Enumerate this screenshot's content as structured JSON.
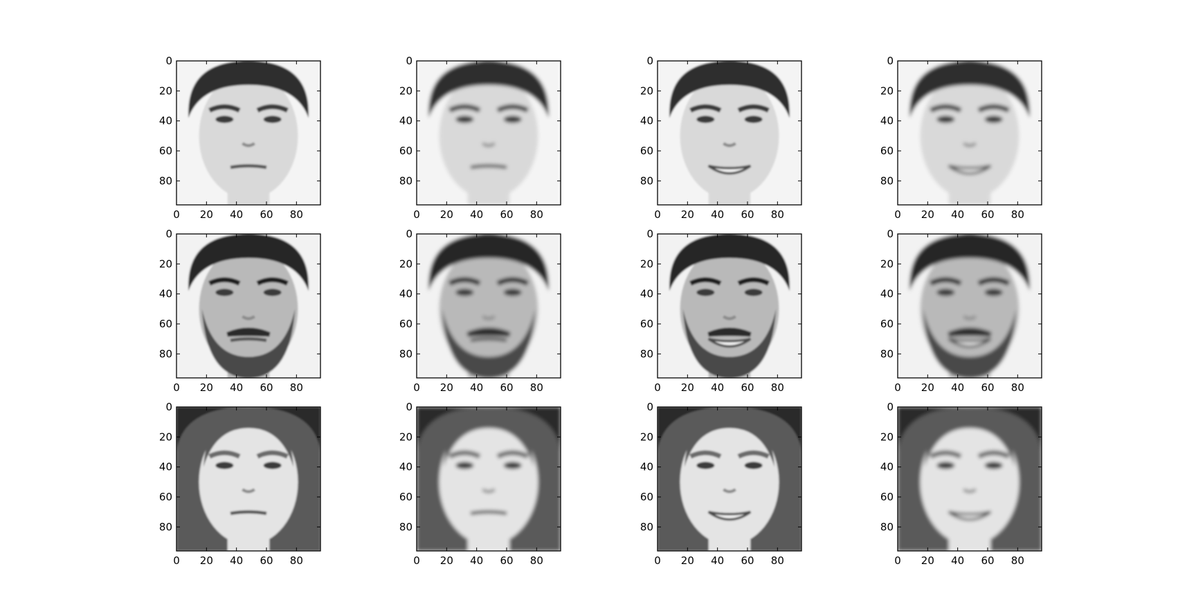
{
  "figure": {
    "rows": 3,
    "cols": 4,
    "axis_limits": {
      "x": [
        0,
        96
      ],
      "y": [
        0,
        96
      ]
    },
    "tick_values": [
      0,
      20,
      40,
      60,
      80
    ],
    "tick_labels": [
      "0",
      "20",
      "40",
      "60",
      "80"
    ],
    "colormap": "gray",
    "panels": [
      {
        "row": 0,
        "col": 0,
        "subject": "young-man-short-hair",
        "expression": "neutral",
        "version": "original"
      },
      {
        "row": 0,
        "col": 1,
        "subject": "young-man-short-hair",
        "expression": "neutral",
        "version": "reconstruction"
      },
      {
        "row": 0,
        "col": 2,
        "subject": "young-man-short-hair",
        "expression": "smiling",
        "version": "original"
      },
      {
        "row": 0,
        "col": 3,
        "subject": "young-man-short-hair",
        "expression": "smiling",
        "version": "reconstruction"
      },
      {
        "row": 1,
        "col": 0,
        "subject": "bearded-man",
        "expression": "neutral",
        "version": "original"
      },
      {
        "row": 1,
        "col": 1,
        "subject": "bearded-man",
        "expression": "neutral",
        "version": "reconstruction"
      },
      {
        "row": 1,
        "col": 2,
        "subject": "bearded-man",
        "expression": "smiling",
        "version": "original"
      },
      {
        "row": 1,
        "col": 3,
        "subject": "bearded-man",
        "expression": "smiling",
        "version": "reconstruction"
      },
      {
        "row": 2,
        "col": 0,
        "subject": "woman-long-hair",
        "expression": "neutral",
        "version": "original"
      },
      {
        "row": 2,
        "col": 1,
        "subject": "woman-long-hair",
        "expression": "neutral",
        "version": "reconstruction"
      },
      {
        "row": 2,
        "col": 2,
        "subject": "woman-long-hair",
        "expression": "smiling",
        "version": "original"
      },
      {
        "row": 2,
        "col": 3,
        "subject": "woman-long-hair",
        "expression": "smiling",
        "version": "reconstruction"
      }
    ]
  },
  "subjects": {
    "young-man-short-hair": {
      "hair": "#2e2e2e",
      "skin": "#d9d9d9",
      "bg": "#f4f4f4",
      "long_hair": false,
      "beard": false,
      "brow": "#3a3a3a"
    },
    "bearded-man": {
      "hair": "#262626",
      "skin": "#b9b9b9",
      "bg": "#f2f2f2",
      "long_hair": false,
      "beard": true,
      "brow": "#1e1e1e"
    },
    "woman-long-hair": {
      "hair": "#5a5a5a",
      "skin": "#e4e4e4",
      "bg": "#2c2c2c",
      "long_hair": true,
      "beard": false,
      "brow": "#6a6a6a"
    }
  }
}
